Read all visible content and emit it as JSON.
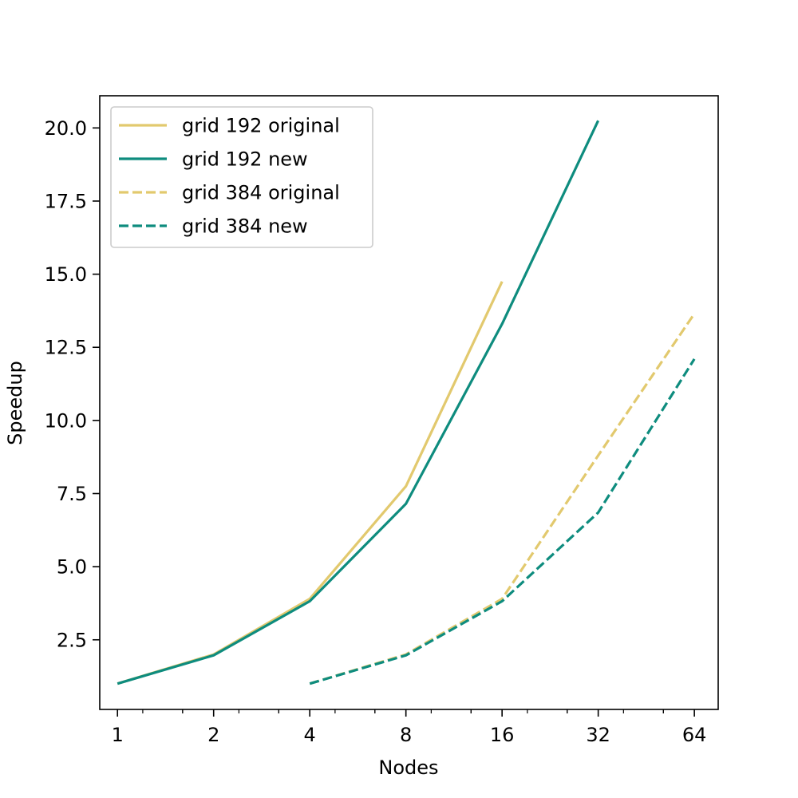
{
  "chart_data": {
    "type": "line",
    "title": "",
    "xlabel": "Nodes",
    "ylabel": "Speedup",
    "xscale": "log2",
    "xlim": [
      0.88,
      76
    ],
    "ylim": [
      0.12,
      21.1
    ],
    "xticks": [
      1,
      2,
      4,
      8,
      16,
      32,
      64
    ],
    "xtick_labels": [
      "1",
      "2",
      "4",
      "8",
      "16",
      "32",
      "64"
    ],
    "yticks": [
      2.5,
      5.0,
      7.5,
      10.0,
      12.5,
      15.0,
      17.5,
      20.0
    ],
    "ytick_labels": [
      "2.5",
      "5.0",
      "7.5",
      "10.0",
      "12.5",
      "15.0",
      "17.5",
      "20.0"
    ],
    "grid": false,
    "legend_position": "top-left",
    "series": [
      {
        "name": "grid 192 original",
        "color": "#e2c96e",
        "dash": "solid",
        "x": [
          1,
          2,
          4,
          8,
          16
        ],
        "y": [
          1.0,
          2.0,
          3.9,
          7.75,
          14.75
        ]
      },
      {
        "name": "grid 192 new",
        "color": "#0e8c7e",
        "dash": "solid",
        "x": [
          1,
          2,
          4,
          8,
          16,
          32
        ],
        "y": [
          1.0,
          1.97,
          3.82,
          7.15,
          13.3,
          20.25
        ]
      },
      {
        "name": "grid 384 original",
        "color": "#e2c96e",
        "dash": "dashed",
        "x": [
          4,
          8,
          16,
          32,
          64
        ],
        "y": [
          1.0,
          2.0,
          3.9,
          8.8,
          13.65
        ]
      },
      {
        "name": "grid 384 new",
        "color": "#0e8c7e",
        "dash": "dashed",
        "x": [
          4,
          8,
          16,
          32,
          64
        ],
        "y": [
          1.0,
          1.97,
          3.82,
          6.85,
          12.1
        ]
      }
    ]
  }
}
